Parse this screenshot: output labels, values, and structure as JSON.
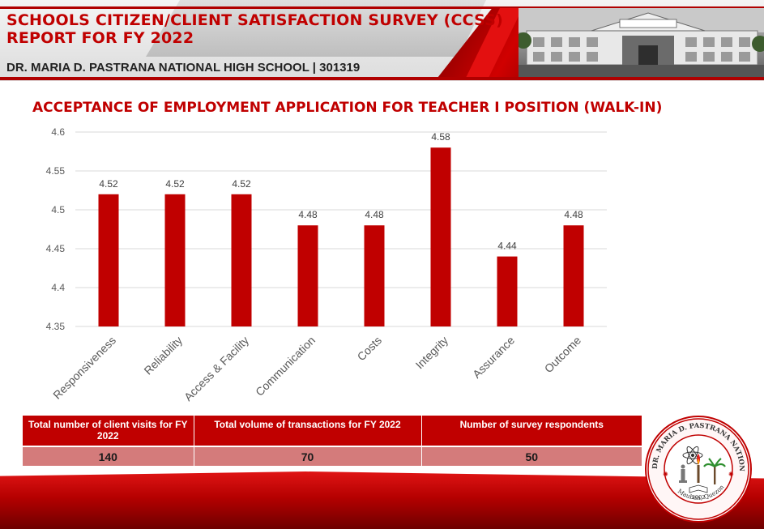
{
  "header": {
    "title_line1": "SCHOOLS CITIZEN/CLIENT SATISFACTION SURVEY (CCSS)",
    "title_line2": "REPORT FOR FY 2022",
    "school": "DR. MARIA D. PASTRANA NATIONAL HIGH SCHOOL | 301319"
  },
  "colors": {
    "accent": "#c00000",
    "bar": "#c00000",
    "table_header": "#c00000",
    "table_value": "#d47b7b"
  },
  "chart_data": {
    "type": "bar",
    "title": "ACCEPTANCE OF EMPLOYMENT APPLICATION FOR TEACHER I POSITION (WALK-IN)",
    "categories": [
      "Responsiveness",
      "Reliability",
      "Access & Facility",
      "Communication",
      "Costs",
      "Integrity",
      "Assurance",
      "Outcome"
    ],
    "values": [
      4.52,
      4.52,
      4.52,
      4.48,
      4.48,
      4.58,
      4.44,
      4.48
    ],
    "value_labels": [
      "4.52",
      "4.52",
      "4.52",
      "4.48",
      "4.48",
      "4.58",
      "4.44",
      "4.48"
    ],
    "yticks": [
      "4.35",
      "4.4",
      "4.45",
      "4.5",
      "4.55",
      "4.6"
    ],
    "ylim": [
      4.35,
      4.6
    ],
    "xlabel": "",
    "ylabel": "",
    "grid": true,
    "legend": "none"
  },
  "summary_table": {
    "headers": [
      "Total number of client visits for FY 2022",
      "Total volume of transactions for FY 2022",
      "Number of survey respondents"
    ],
    "values": [
      "140",
      "70",
      "50"
    ]
  },
  "seal": {
    "ring_text": "DR. MARIA D. PASTRANA NATIONAL HIGH SCHOOL",
    "year": "2002",
    "location": "Mauban, Quezon"
  }
}
